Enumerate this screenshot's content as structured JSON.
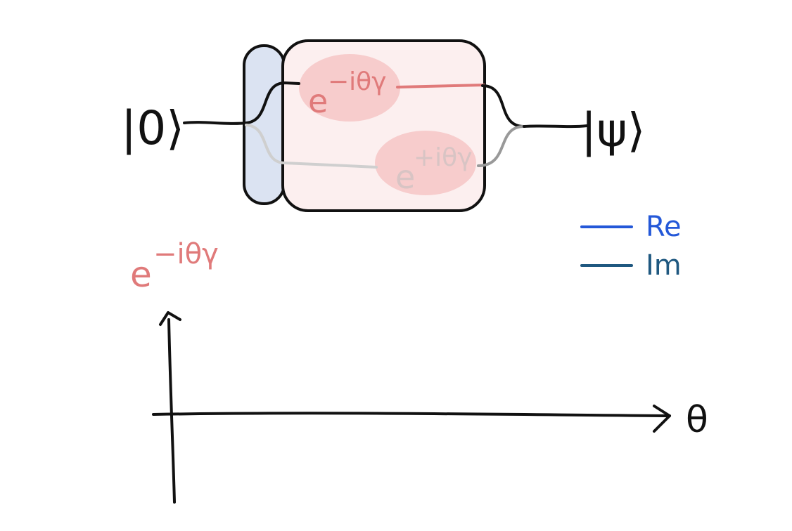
{
  "circuit": {
    "input": "|0⟩",
    "output": "|ψ⟩",
    "upper_phase": {
      "base": "e",
      "exponent": "−iθγ"
    },
    "lower_phase": {
      "base": "e",
      "exponent": "+iθγ"
    }
  },
  "plot": {
    "y_label": {
      "base": "e",
      "exponent": "−iθγ"
    },
    "x_label": "θ",
    "legend": [
      {
        "name": "Re",
        "color": "#2458d8"
      },
      {
        "name": "Im",
        "color": "#1f5880"
      }
    ]
  }
}
